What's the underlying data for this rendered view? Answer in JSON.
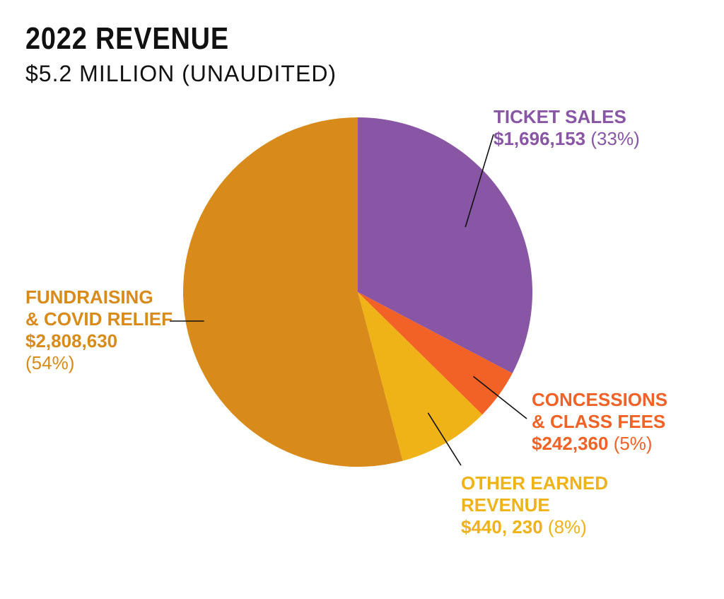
{
  "title": "2022 REVENUE",
  "subtitle": "$5.2 MILLION (UNAUDITED)",
  "chart_data": {
    "type": "pie",
    "title": "2022 REVENUE",
    "subtitle": "$5.2 MILLION (UNAUDITED)",
    "slices": [
      {
        "label": "TICKET SALES",
        "label_lines": [
          "TICKET SALES"
        ],
        "value": 1696153,
        "value_text": "$1,696,153",
        "percent": 33,
        "percent_text": "(33%)",
        "color": "#8956A5"
      },
      {
        "label": "CONCESSIONS & CLASS FEES",
        "label_lines": [
          "CONCESSIONS",
          "& CLASS FEES"
        ],
        "value": 242360,
        "value_text": "$242,360",
        "percent": 5,
        "percent_text": "(5%)",
        "color": "#F26125"
      },
      {
        "label": "OTHER EARNED REVENUE",
        "label_lines": [
          "OTHER EARNED",
          "REVENUE"
        ],
        "value": 440230,
        "value_text": "$440, 230",
        "percent": 8,
        "percent_text": "(8%)",
        "color": "#EFB317"
      },
      {
        "label": "FUNDRAISING & COVID RELIEF",
        "label_lines": [
          "FUNDRAISING",
          "& COVID RELIEF"
        ],
        "value": 2808630,
        "value_text": "$2,808,630",
        "percent": 54,
        "percent_text": "(54%)",
        "color": "#D88A1A"
      }
    ],
    "start": "12 o'clock",
    "direction": "clockwise",
    "legend": "none",
    "label_style": "callouts with leader lines"
  }
}
